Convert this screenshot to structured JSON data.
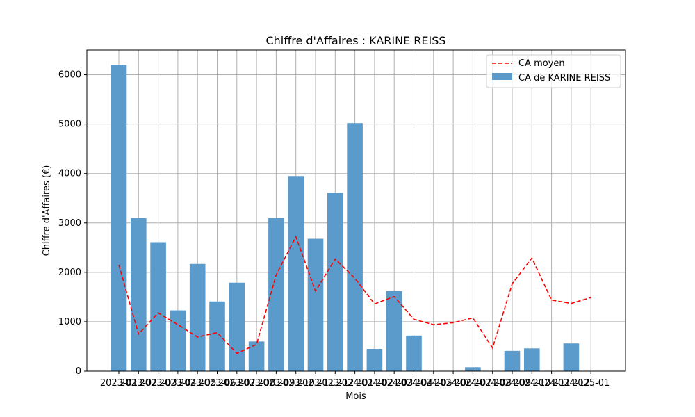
{
  "chart_data": {
    "type": "bar",
    "title": "Chiffre d'Affaires : KARINE REISS",
    "xlabel": "Mois",
    "ylabel": "Chiffre d'Affaires (€)",
    "ylim": [
      0,
      6500
    ],
    "yticks": [
      0,
      1000,
      2000,
      3000,
      4000,
      5000,
      6000
    ],
    "grid": true,
    "legend_position": "top-right",
    "categories": [
      "2023-01",
      "2023-02",
      "2023-03",
      "2023-04",
      "2023-05",
      "2023-06",
      "2023-07",
      "2023-08",
      "2023-09",
      "2023-10",
      "2023-11",
      "2023-12",
      "2024-01",
      "2024-02",
      "2024-03",
      "2024-04",
      "2024-05",
      "2024-06",
      "2024-07",
      "2024-08",
      "2024-09",
      "2024-10",
      "2024-11",
      "2024-12",
      "2025-01"
    ],
    "series": [
      {
        "name": "CA de KARINE REISS",
        "type": "bar",
        "color": "#5b9bcb",
        "values": [
          6200,
          3100,
          2610,
          1230,
          2170,
          1410,
          1790,
          600,
          3100,
          3950,
          2680,
          3610,
          5020,
          450,
          1620,
          720,
          0,
          0,
          80,
          0,
          410,
          460,
          0,
          560,
          0
        ]
      },
      {
        "name": "CA moyen",
        "type": "line",
        "style": "dashed",
        "color": "#ff0000",
        "values": [
          2150,
          750,
          1180,
          940,
          690,
          780,
          360,
          540,
          1950,
          2720,
          1620,
          2270,
          1880,
          1360,
          1510,
          1050,
          940,
          980,
          1080,
          470,
          1770,
          2290,
          1440,
          1370,
          1490
        ]
      }
    ]
  }
}
